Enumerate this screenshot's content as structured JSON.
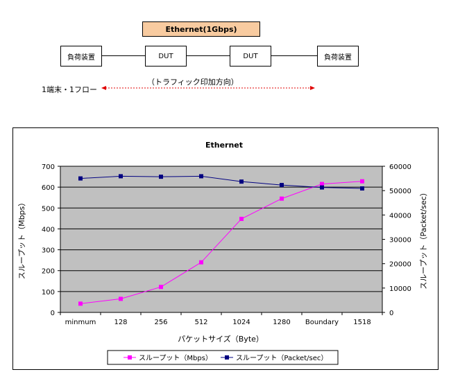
{
  "diagram": {
    "header": "Ethernet(1Gbps)",
    "nodes": [
      "負荷装置",
      "DUT",
      "DUT",
      "負荷装置"
    ],
    "direction_label": "（トラフィック印加方向）",
    "flow_label": "1端末・1フロー"
  },
  "chart_data": {
    "type": "line",
    "title": "Ethernet",
    "xlabel": "パケットサイズ（Byte）",
    "ylabel_left": "スループット（Mbps）",
    "ylabel_right": "スループット（Packet/sec）",
    "categories": [
      "minmum",
      "128",
      "256",
      "512",
      "1024",
      "1280",
      "Boundary",
      "1518"
    ],
    "ylim_left": [
      0,
      700
    ],
    "ylim_right": [
      0,
      60000
    ],
    "yticks_left": [
      0,
      100,
      200,
      300,
      400,
      500,
      600,
      700
    ],
    "yticks_right": [
      0,
      10000,
      20000,
      30000,
      40000,
      50000,
      60000
    ],
    "grid": true,
    "legend_position": "bottom",
    "series": [
      {
        "name": "スループット（Mbps）",
        "axis": "left",
        "color": "#ff00ff",
        "marker": "square",
        "values": [
          42,
          65,
          122,
          240,
          448,
          545,
          615,
          628
        ]
      },
      {
        "name": "スループット（Packet/sec）",
        "axis": "right",
        "color": "#000080",
        "marker": "square",
        "values": [
          55000,
          55900,
          55700,
          55900,
          53700,
          52300,
          51300,
          50900
        ]
      }
    ],
    "plot_background": "#c0c0c0"
  }
}
